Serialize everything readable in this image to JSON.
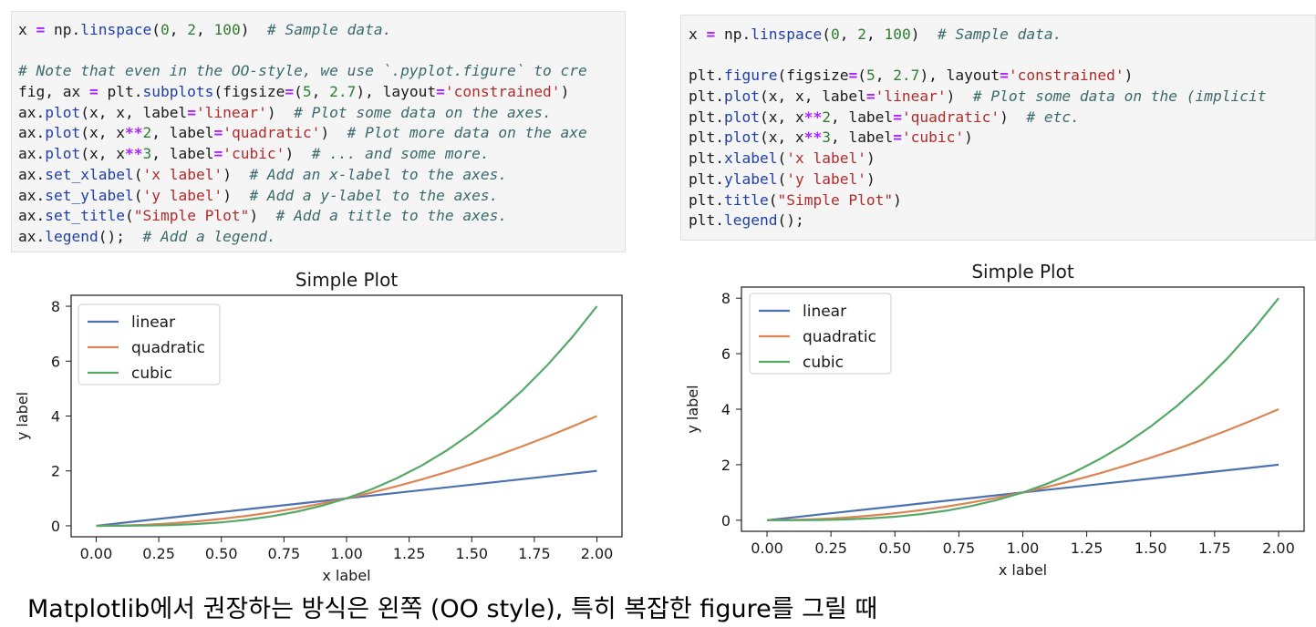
{
  "code_left": {
    "lines": [
      [
        [
          "plain",
          "x "
        ],
        [
          "op",
          "="
        ],
        [
          "plain",
          " np."
        ],
        [
          "fn",
          "linspace"
        ],
        [
          "plain",
          "("
        ],
        [
          "num",
          "0"
        ],
        [
          "plain",
          ", "
        ],
        [
          "num",
          "2"
        ],
        [
          "plain",
          ", "
        ],
        [
          "num",
          "100"
        ],
        [
          "plain",
          ")  "
        ],
        [
          "cm",
          "# Sample data."
        ]
      ],
      [],
      [
        [
          "cm",
          "# Note that even in the OO-style, we use `.pyplot.figure` to cre"
        ]
      ],
      [
        [
          "plain",
          "fig, ax "
        ],
        [
          "op",
          "="
        ],
        [
          "plain",
          " plt."
        ],
        [
          "fn",
          "subplots"
        ],
        [
          "plain",
          "(figsize"
        ],
        [
          "op",
          "="
        ],
        [
          "plain",
          "("
        ],
        [
          "num",
          "5"
        ],
        [
          "plain",
          ", "
        ],
        [
          "num",
          "2.7"
        ],
        [
          "plain",
          "), layout"
        ],
        [
          "op",
          "="
        ],
        [
          "str",
          "'constrained'"
        ],
        [
          "plain",
          ")"
        ]
      ],
      [
        [
          "plain",
          "ax."
        ],
        [
          "fn",
          "plot"
        ],
        [
          "plain",
          "(x, x, label"
        ],
        [
          "op",
          "="
        ],
        [
          "str",
          "'linear'"
        ],
        [
          "plain",
          ")  "
        ],
        [
          "cm",
          "# Plot some data on the axes."
        ]
      ],
      [
        [
          "plain",
          "ax."
        ],
        [
          "fn",
          "plot"
        ],
        [
          "plain",
          "(x, x"
        ],
        [
          "op",
          "**"
        ],
        [
          "num",
          "2"
        ],
        [
          "plain",
          ", label"
        ],
        [
          "op",
          "="
        ],
        [
          "str",
          "'quadratic'"
        ],
        [
          "plain",
          ")  "
        ],
        [
          "cm",
          "# Plot more data on the axe"
        ]
      ],
      [
        [
          "plain",
          "ax."
        ],
        [
          "fn",
          "plot"
        ],
        [
          "plain",
          "(x, x"
        ],
        [
          "op",
          "**"
        ],
        [
          "num",
          "3"
        ],
        [
          "plain",
          ", label"
        ],
        [
          "op",
          "="
        ],
        [
          "str",
          "'cubic'"
        ],
        [
          "plain",
          ")  "
        ],
        [
          "cm",
          "# ... and some more."
        ]
      ],
      [
        [
          "plain",
          "ax."
        ],
        [
          "fn",
          "set_xlabel"
        ],
        [
          "plain",
          "("
        ],
        [
          "str",
          "'x label'"
        ],
        [
          "plain",
          ")  "
        ],
        [
          "cm",
          "# Add an x-label to the axes."
        ]
      ],
      [
        [
          "plain",
          "ax."
        ],
        [
          "fn",
          "set_ylabel"
        ],
        [
          "plain",
          "("
        ],
        [
          "str",
          "'y label'"
        ],
        [
          "plain",
          ")  "
        ],
        [
          "cm",
          "# Add a y-label to the axes."
        ]
      ],
      [
        [
          "plain",
          "ax."
        ],
        [
          "fn",
          "set_title"
        ],
        [
          "plain",
          "("
        ],
        [
          "str",
          "\"Simple Plot\""
        ],
        [
          "plain",
          ")  "
        ],
        [
          "cm",
          "# Add a title to the axes."
        ]
      ],
      [
        [
          "plain",
          "ax."
        ],
        [
          "fn",
          "legend"
        ],
        [
          "plain",
          "();  "
        ],
        [
          "cm",
          "# Add a legend."
        ]
      ]
    ]
  },
  "code_right": {
    "lines": [
      [
        [
          "plain",
          "x "
        ],
        [
          "op",
          "="
        ],
        [
          "plain",
          " np."
        ],
        [
          "fn",
          "linspace"
        ],
        [
          "plain",
          "("
        ],
        [
          "num",
          "0"
        ],
        [
          "plain",
          ", "
        ],
        [
          "num",
          "2"
        ],
        [
          "plain",
          ", "
        ],
        [
          "num",
          "100"
        ],
        [
          "plain",
          ")  "
        ],
        [
          "cm",
          "# Sample data."
        ]
      ],
      [],
      [
        [
          "plain",
          "plt."
        ],
        [
          "fn",
          "figure"
        ],
        [
          "plain",
          "(figsize"
        ],
        [
          "op",
          "="
        ],
        [
          "plain",
          "("
        ],
        [
          "num",
          "5"
        ],
        [
          "plain",
          ", "
        ],
        [
          "num",
          "2.7"
        ],
        [
          "plain",
          "), layout"
        ],
        [
          "op",
          "="
        ],
        [
          "str",
          "'constrained'"
        ],
        [
          "plain",
          ")"
        ]
      ],
      [
        [
          "plain",
          "plt."
        ],
        [
          "fn",
          "plot"
        ],
        [
          "plain",
          "(x, x, label"
        ],
        [
          "op",
          "="
        ],
        [
          "str",
          "'linear'"
        ],
        [
          "plain",
          ")  "
        ],
        [
          "cm",
          "# Plot some data on the (implicit"
        ]
      ],
      [
        [
          "plain",
          "plt."
        ],
        [
          "fn",
          "plot"
        ],
        [
          "plain",
          "(x, x"
        ],
        [
          "op",
          "**"
        ],
        [
          "num",
          "2"
        ],
        [
          "plain",
          ", label"
        ],
        [
          "op",
          "="
        ],
        [
          "str",
          "'quadratic'"
        ],
        [
          "plain",
          ")  "
        ],
        [
          "cm",
          "# etc."
        ]
      ],
      [
        [
          "plain",
          "plt."
        ],
        [
          "fn",
          "plot"
        ],
        [
          "plain",
          "(x, x"
        ],
        [
          "op",
          "**"
        ],
        [
          "num",
          "3"
        ],
        [
          "plain",
          ", label"
        ],
        [
          "op",
          "="
        ],
        [
          "str",
          "'cubic'"
        ],
        [
          "plain",
          ")"
        ]
      ],
      [
        [
          "plain",
          "plt."
        ],
        [
          "fn",
          "xlabel"
        ],
        [
          "plain",
          "("
        ],
        [
          "str",
          "'x label'"
        ],
        [
          "plain",
          ")"
        ]
      ],
      [
        [
          "plain",
          "plt."
        ],
        [
          "fn",
          "ylabel"
        ],
        [
          "plain",
          "("
        ],
        [
          "str",
          "'y label'"
        ],
        [
          "plain",
          ")"
        ]
      ],
      [
        [
          "plain",
          "plt."
        ],
        [
          "fn",
          "title"
        ],
        [
          "plain",
          "("
        ],
        [
          "str",
          "\"Simple Plot\""
        ],
        [
          "plain",
          ")"
        ]
      ],
      [
        [
          "plain",
          "plt."
        ],
        [
          "fn",
          "legend"
        ],
        [
          "plain",
          "();"
        ]
      ]
    ]
  },
  "chart_data": [
    {
      "type": "line",
      "title": "Simple Plot",
      "xlabel": "x label",
      "ylabel": "y label",
      "xlim": [
        -0.1,
        2.1
      ],
      "ylim": [
        -0.4,
        8.4
      ],
      "x_ticks": [
        "0.00",
        "0.25",
        "0.50",
        "0.75",
        "1.00",
        "1.25",
        "1.50",
        "1.75",
        "2.00"
      ],
      "y_ticks": [
        "0",
        "2",
        "4",
        "6",
        "8"
      ],
      "x_tick_values": [
        0,
        0.25,
        0.5,
        0.75,
        1,
        1.25,
        1.5,
        1.75,
        2
      ],
      "y_tick_values": [
        0,
        2,
        4,
        6,
        8
      ],
      "grid": false,
      "legend_position": "top-left",
      "x": [
        0,
        0.1,
        0.2,
        0.3,
        0.4,
        0.5,
        0.6,
        0.7,
        0.8,
        0.9,
        1.0,
        1.1,
        1.2,
        1.3,
        1.4,
        1.5,
        1.6,
        1.7,
        1.8,
        1.9,
        2.0
      ],
      "series": [
        {
          "name": "linear",
          "color": "#4c72b0",
          "values": [
            0,
            0.1,
            0.2,
            0.3,
            0.4,
            0.5,
            0.6,
            0.7,
            0.8,
            0.9,
            1.0,
            1.1,
            1.2,
            1.3,
            1.4,
            1.5,
            1.6,
            1.7,
            1.8,
            1.9,
            2.0
          ]
        },
        {
          "name": "quadratic",
          "color": "#dd8452",
          "values": [
            0,
            0.01,
            0.04,
            0.09,
            0.16,
            0.25,
            0.36,
            0.49,
            0.64,
            0.81,
            1.0,
            1.21,
            1.44,
            1.69,
            1.96,
            2.25,
            2.56,
            2.89,
            3.24,
            3.61,
            4.0
          ]
        },
        {
          "name": "cubic",
          "color": "#55a868",
          "values": [
            0,
            0.001,
            0.008,
            0.027,
            0.064,
            0.125,
            0.216,
            0.343,
            0.512,
            0.729,
            1.0,
            1.331,
            1.728,
            2.197,
            2.744,
            3.375,
            4.096,
            4.913,
            5.832,
            6.859,
            8.0
          ]
        }
      ]
    },
    {
      "type": "line",
      "title": "Simple Plot",
      "xlabel": "x label",
      "ylabel": "y label",
      "xlim": [
        -0.1,
        2.1
      ],
      "ylim": [
        -0.4,
        8.4
      ],
      "x_ticks": [
        "0.00",
        "0.25",
        "0.50",
        "0.75",
        "1.00",
        "1.25",
        "1.50",
        "1.75",
        "2.00"
      ],
      "y_ticks": [
        "0",
        "2",
        "4",
        "6",
        "8"
      ],
      "x_tick_values": [
        0,
        0.25,
        0.5,
        0.75,
        1,
        1.25,
        1.5,
        1.75,
        2
      ],
      "y_tick_values": [
        0,
        2,
        4,
        6,
        8
      ],
      "grid": false,
      "legend_position": "top-left",
      "x": [
        0,
        0.1,
        0.2,
        0.3,
        0.4,
        0.5,
        0.6,
        0.7,
        0.8,
        0.9,
        1.0,
        1.1,
        1.2,
        1.3,
        1.4,
        1.5,
        1.6,
        1.7,
        1.8,
        1.9,
        2.0
      ],
      "series": [
        {
          "name": "linear",
          "color": "#4c72b0",
          "values": [
            0,
            0.1,
            0.2,
            0.3,
            0.4,
            0.5,
            0.6,
            0.7,
            0.8,
            0.9,
            1.0,
            1.1,
            1.2,
            1.3,
            1.4,
            1.5,
            1.6,
            1.7,
            1.8,
            1.9,
            2.0
          ]
        },
        {
          "name": "quadratic",
          "color": "#dd8452",
          "values": [
            0,
            0.01,
            0.04,
            0.09,
            0.16,
            0.25,
            0.36,
            0.49,
            0.64,
            0.81,
            1.0,
            1.21,
            1.44,
            1.69,
            1.96,
            2.25,
            2.56,
            2.89,
            3.24,
            3.61,
            4.0
          ]
        },
        {
          "name": "cubic",
          "color": "#55a868",
          "values": [
            0,
            0.001,
            0.008,
            0.027,
            0.064,
            0.125,
            0.216,
            0.343,
            0.512,
            0.729,
            1.0,
            1.331,
            1.728,
            2.197,
            2.744,
            3.375,
            4.096,
            4.913,
            5.832,
            6.859,
            8.0
          ]
        }
      ]
    }
  ],
  "caption": "Matplotlib에서 권장하는 방식은 왼쪽 (OO style), 특히 복잡한 figure를 그릴 때"
}
